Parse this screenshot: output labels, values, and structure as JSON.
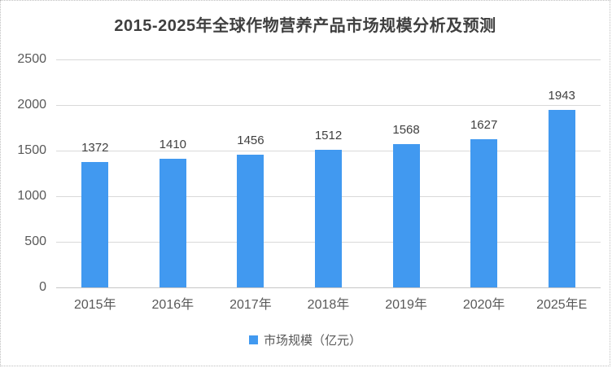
{
  "chart_data": {
    "type": "bar",
    "title": "2015-2025年全球作物营养产品市场规模分析及预测",
    "categories": [
      "2015年",
      "2016年",
      "2017年",
      "2018年",
      "2019年",
      "2020年",
      "2025年E"
    ],
    "values": [
      1372,
      1410,
      1456,
      1512,
      1568,
      1627,
      1943
    ],
    "series_name": "市场规模（亿元）",
    "ylim": [
      0,
      2500
    ],
    "yticks": [
      0,
      500,
      1000,
      1500,
      2000,
      2500
    ],
    "grid": true,
    "data_labels": true,
    "legend_position": "bottom"
  },
  "colors": {
    "bar": "#4199f0",
    "title_text": "#3f3f3f",
    "value_label_text": "#404040",
    "axis_text": "#595959",
    "gridline": "#d9d9d9",
    "frame_border": "#bfbfbf"
  }
}
